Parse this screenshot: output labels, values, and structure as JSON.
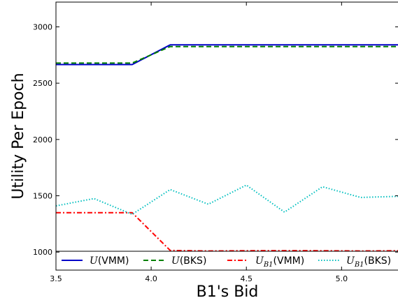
{
  "chart_data": {
    "type": "line",
    "title": "",
    "xlabel": "B1's Bid",
    "ylabel": "Utility Per Epoch",
    "xlim": [
      3.5,
      5.3
    ],
    "ylim": [
      840,
      3220
    ],
    "grid": false,
    "legend_position": "bottom",
    "x_ticks": [
      {
        "value": 3.5,
        "label": "3.5"
      },
      {
        "value": 4.0,
        "label": "4.0"
      },
      {
        "value": 4.5,
        "label": "4.5"
      },
      {
        "value": 5.0,
        "label": "5.0"
      }
    ],
    "y_ticks": [
      {
        "value": 1000,
        "label": "1000"
      },
      {
        "value": 1500,
        "label": "1500"
      },
      {
        "value": 2000,
        "label": "2000"
      },
      {
        "value": 2500,
        "label": "2500"
      },
      {
        "value": 3000,
        "label": "3000"
      }
    ],
    "series": [
      {
        "name": "U(VMM)",
        "legend": {
          "sym": "U",
          "sub": "",
          "suffix": "(VMM)"
        },
        "color": "#0000c8",
        "style": "solid",
        "x": [
          3.5,
          3.9,
          4.1,
          5.3
        ],
        "y": [
          2665,
          2665,
          2840,
          2840
        ]
      },
      {
        "name": "U(BKS)",
        "legend": {
          "sym": "U",
          "sub": "",
          "suffix": "(BKS)"
        },
        "color": "#008000",
        "style": "dashed",
        "x": [
          3.5,
          3.9,
          4.1,
          5.3
        ],
        "y": [
          2678,
          2678,
          2825,
          2825
        ]
      },
      {
        "name": "U_B1(VMM)",
        "legend": {
          "sym": "U",
          "sub": "B1",
          "suffix": "(VMM)"
        },
        "color": "#ff0000",
        "style": "dashdot",
        "x": [
          3.5,
          3.9,
          4.1,
          4.3,
          4.5,
          4.7,
          4.9,
          5.1,
          5.3
        ],
        "y": [
          1350,
          1350,
          1015,
          1010,
          1012,
          1013,
          1012,
          1010,
          1012
        ]
      },
      {
        "name": "U_B1(BKS)",
        "legend": {
          "sym": "U",
          "sub": "B1",
          "suffix": "(BKS)"
        },
        "color": "#00bfbf",
        "style": "dotted",
        "x": [
          3.5,
          3.7,
          3.9,
          4.1,
          4.3,
          4.5,
          4.7,
          4.9,
          5.1,
          5.3
        ],
        "y": [
          1410,
          1475,
          1335,
          1555,
          1425,
          1595,
          1355,
          1580,
          1485,
          1495
        ]
      }
    ]
  }
}
